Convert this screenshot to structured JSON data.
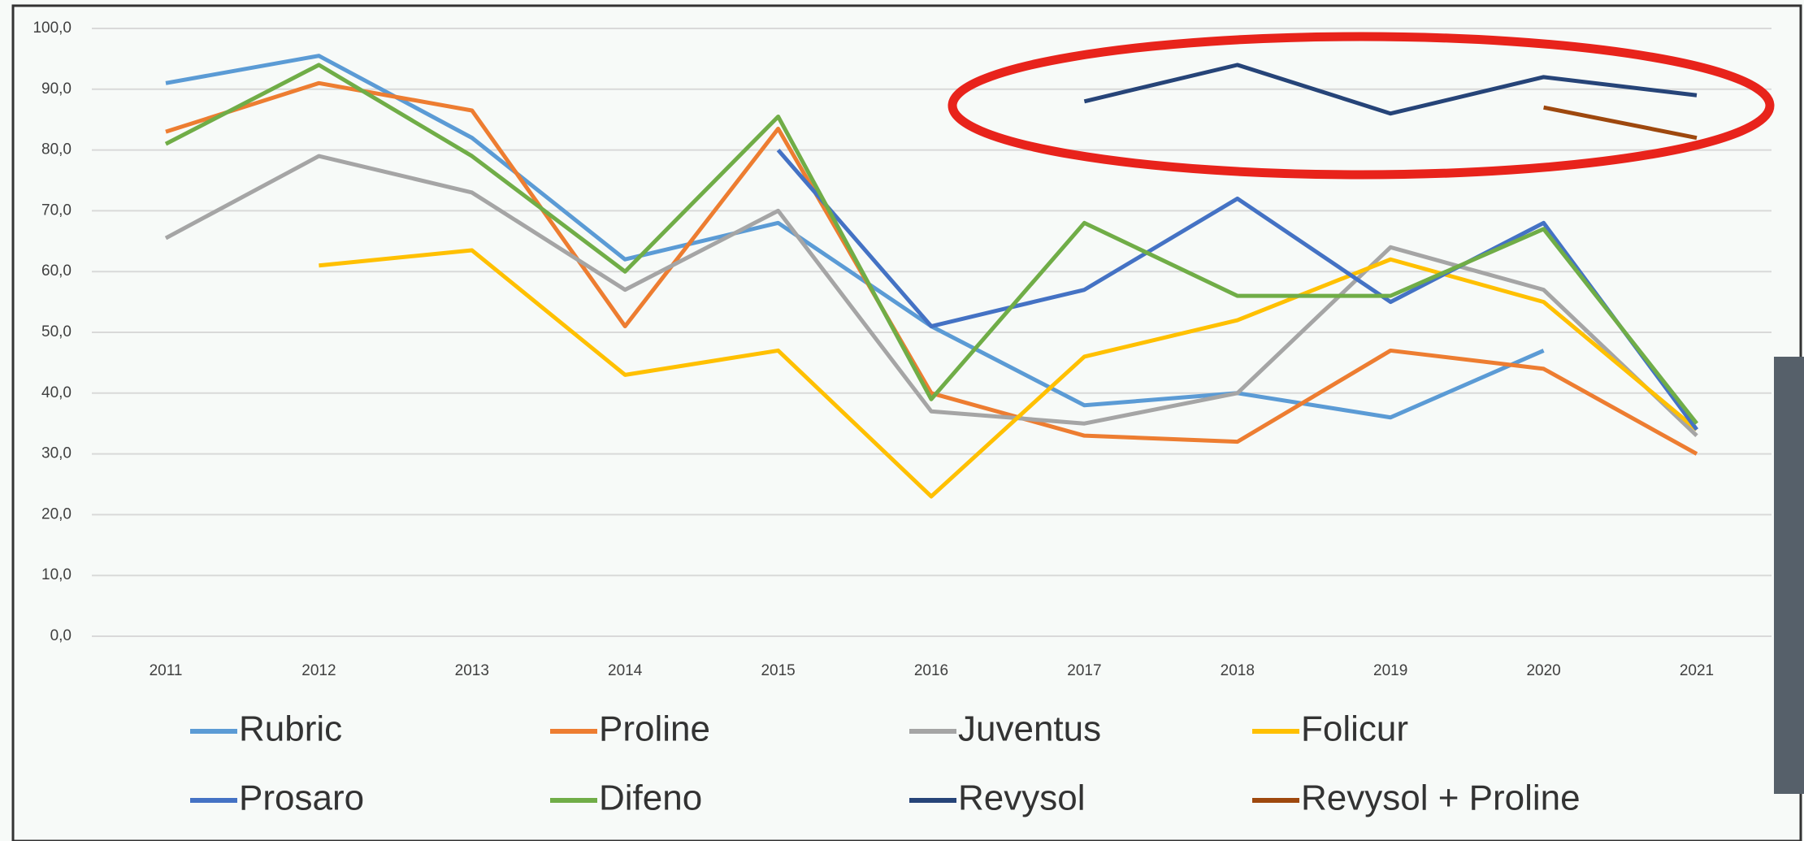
{
  "chart_data": {
    "type": "line",
    "categories": [
      "2011",
      "2012",
      "2013",
      "2014",
      "2015",
      "2016",
      "2017",
      "2018",
      "2019",
      "2020",
      "2021"
    ],
    "series": [
      {
        "name": "Rubric",
        "color": "#5b9bd5",
        "values": [
          91,
          95.5,
          82,
          62,
          68,
          51,
          38,
          40,
          36,
          47,
          null
        ]
      },
      {
        "name": "Proline",
        "color": "#ed7d31",
        "values": [
          83,
          91,
          86.5,
          51,
          83.5,
          40,
          33,
          32,
          47,
          44,
          30
        ]
      },
      {
        "name": "Juventus",
        "color": "#a5a5a5",
        "values": [
          65.5,
          79,
          73,
          57,
          70,
          37,
          35,
          40,
          64,
          57,
          33
        ]
      },
      {
        "name": "Folicur",
        "color": "#ffc000",
        "values": [
          null,
          61,
          63.5,
          43,
          47,
          23,
          46,
          52,
          62,
          55,
          34
        ]
      },
      {
        "name": "Prosaro",
        "color": "#4472c4",
        "values": [
          null,
          null,
          null,
          null,
          80,
          51,
          57,
          72,
          55,
          68,
          34
        ]
      },
      {
        "name": "Difeno",
        "color": "#70ad47",
        "values": [
          81,
          94,
          79,
          60,
          85.5,
          39,
          68,
          56,
          56,
          67,
          35
        ]
      },
      {
        "name": "Revysol",
        "color": "#264478",
        "values": [
          null,
          null,
          null,
          null,
          null,
          null,
          88,
          94,
          86,
          92,
          89
        ]
      },
      {
        "name": "Revysol + Proline",
        "color": "#9e480e",
        "values": [
          null,
          null,
          null,
          null,
          null,
          null,
          null,
          null,
          null,
          87,
          82
        ]
      }
    ],
    "ylim": [
      0,
      100
    ],
    "yticks": [
      {
        "value": 0,
        "label": "0,0"
      },
      {
        "value": 10,
        "label": "10,0"
      },
      {
        "value": 20,
        "label": "20,0"
      },
      {
        "value": 30,
        "label": "30,0"
      },
      {
        "value": 40,
        "label": "40,0"
      },
      {
        "value": 50,
        "label": "50,0"
      },
      {
        "value": 60,
        "label": "60,0"
      },
      {
        "value": 70,
        "label": "70,0"
      },
      {
        "value": 80,
        "label": "80,0"
      },
      {
        "value": 90,
        "label": "90,0"
      },
      {
        "value": 100,
        "label": "100,0"
      }
    ],
    "grid": true
  }
}
